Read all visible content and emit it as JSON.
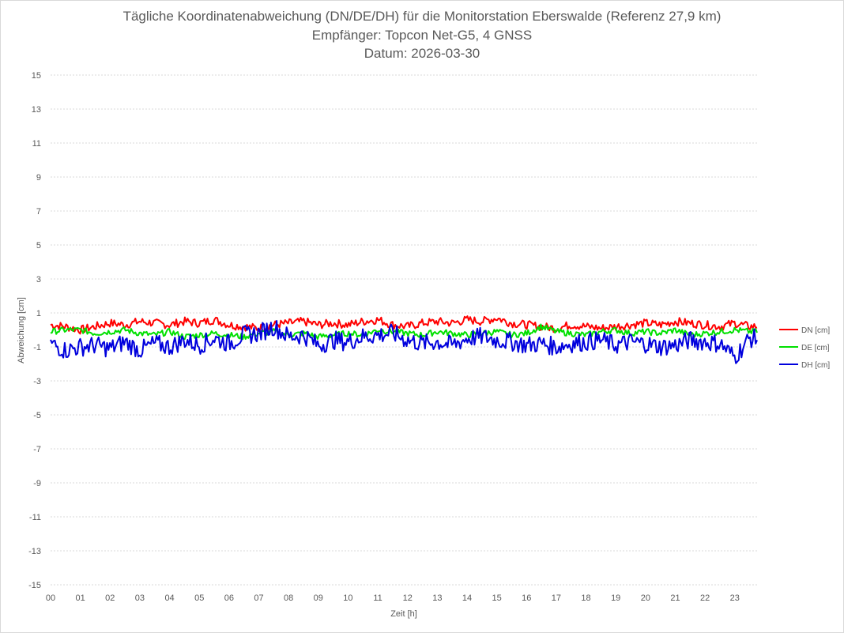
{
  "chart_data": {
    "type": "line",
    "title": [
      "Tägliche Koordinatenabweichung (DN/DE/DH) für die Monitorstation Eberswalde (Referenz 27,9 km)",
      "Empfänger: Topcon Net-G5, 4 GNSS",
      "Datum: 2026-03-30"
    ],
    "xlabel": "Zeit [h]",
    "ylabel": "Abweichung [cm]",
    "xlim": [
      0,
      23.75
    ],
    "ylim": [
      -15,
      15
    ],
    "x_tick_labels": [
      "00",
      "01",
      "02",
      "03",
      "04",
      "05",
      "06",
      "07",
      "08",
      "09",
      "10",
      "11",
      "12",
      "13",
      "14",
      "15",
      "16",
      "17",
      "18",
      "19",
      "20",
      "21",
      "22",
      "23"
    ],
    "y_ticks": [
      15,
      13,
      11,
      9,
      7,
      5,
      3,
      1,
      -1,
      -3,
      -5,
      -7,
      -9,
      -11,
      -13,
      -15
    ],
    "grid": "horizontal-dotted",
    "legend_position": "right",
    "series": [
      {
        "name": "DN [cm]",
        "color": "#ff0000",
        "x": [
          0,
          0.5,
          1,
          1.5,
          2,
          2.5,
          3,
          3.5,
          4,
          4.5,
          5,
          5.5,
          6,
          6.5,
          7,
          7.5,
          8,
          8.5,
          9,
          9.5,
          10,
          10.5,
          11,
          11.5,
          12,
          12.5,
          13,
          13.5,
          14,
          14.5,
          15,
          15.5,
          16,
          16.5,
          17,
          17.5,
          18,
          18.5,
          19,
          19.5,
          20,
          20.5,
          21,
          21.5,
          22,
          22.5,
          23,
          23.5
        ],
        "values": [
          0.3,
          0.2,
          0.0,
          0.2,
          0.4,
          0.3,
          0.5,
          0.4,
          0.3,
          0.5,
          0.4,
          0.6,
          0.3,
          0.2,
          0.1,
          0.3,
          0.4,
          0.5,
          0.3,
          0.4,
          0.3,
          0.5,
          0.6,
          0.3,
          0.2,
          0.4,
          0.5,
          0.4,
          0.6,
          0.5,
          0.7,
          0.4,
          0.3,
          0.2,
          0.1,
          0.3,
          0.2,
          0.1,
          0.2,
          0.3,
          0.4,
          0.3,
          0.5,
          0.4,
          0.3,
          0.2,
          0.4,
          0.2
        ]
      },
      {
        "name": "DE [cm]",
        "color": "#00e000",
        "x": [
          0,
          0.5,
          1,
          1.5,
          2,
          2.5,
          3,
          3.5,
          4,
          4.5,
          5,
          5.5,
          6,
          6.5,
          7,
          7.5,
          8,
          8.5,
          9,
          9.5,
          10,
          10.5,
          11,
          11.5,
          12,
          12.5,
          13,
          13.5,
          14,
          14.5,
          15,
          15.5,
          16,
          16.5,
          17,
          17.5,
          18,
          18.5,
          19,
          19.5,
          20,
          20.5,
          21,
          21.5,
          22,
          22.5,
          23,
          23.5
        ],
        "values": [
          -0.1,
          0.0,
          0.0,
          -0.2,
          -0.1,
          0.0,
          -0.2,
          -0.3,
          -0.1,
          -0.4,
          -0.3,
          -0.2,
          -0.3,
          -0.4,
          -0.2,
          -0.1,
          -0.3,
          -0.2,
          -0.4,
          -0.3,
          -0.2,
          -0.3,
          0.0,
          -0.1,
          -0.2,
          -0.3,
          -0.1,
          -0.2,
          -0.3,
          -0.2,
          -0.1,
          -0.3,
          -0.2,
          0.2,
          -0.1,
          -0.2,
          -0.3,
          -0.1,
          0.0,
          -0.2,
          -0.1,
          -0.2,
          0.0,
          -0.3,
          -0.2,
          -0.1,
          0.0,
          -0.1
        ]
      },
      {
        "name": "DH [cm]",
        "color": "#0000dd",
        "x": [
          0,
          0.5,
          1,
          1.5,
          2,
          2.5,
          3,
          3.5,
          4,
          4.5,
          5,
          5.5,
          6,
          6.5,
          7,
          7.5,
          8,
          8.5,
          9,
          9.5,
          10,
          10.5,
          11,
          11.5,
          12,
          12.5,
          13,
          13.5,
          14,
          14.5,
          15,
          15.5,
          16,
          16.5,
          17,
          17.5,
          18,
          18.5,
          19,
          19.5,
          20,
          20.5,
          21,
          21.5,
          22,
          22.5,
          23,
          23.5
        ],
        "values": [
          -0.8,
          -1.2,
          -1.0,
          -0.9,
          -1.1,
          -0.7,
          -1.2,
          -0.8,
          -1.0,
          -0.6,
          -0.9,
          -0.5,
          -0.8,
          -0.3,
          -0.2,
          0.2,
          -0.4,
          -0.3,
          -0.9,
          -0.6,
          -0.7,
          -0.4,
          -0.3,
          -0.2,
          -0.6,
          -0.8,
          -0.7,
          -0.9,
          -0.5,
          -0.4,
          -0.6,
          -0.7,
          -0.9,
          -0.8,
          -1.0,
          -0.8,
          -0.7,
          -0.6,
          -0.9,
          -0.7,
          -0.8,
          -1.0,
          -0.9,
          -0.6,
          -0.7,
          -0.8,
          -1.6,
          -0.5
        ]
      }
    ]
  }
}
